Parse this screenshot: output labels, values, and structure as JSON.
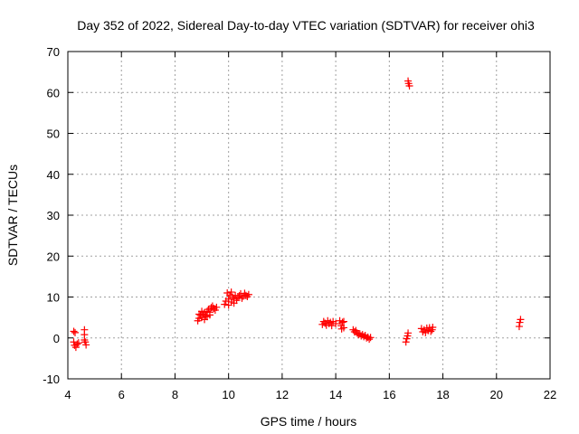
{
  "chart_data": {
    "type": "scatter",
    "title": "Day 352 of 2022, Sidereal Day-to-day VTEC variation (SDTVAR) for receiver ohi3",
    "xlabel": "GPS time / hours",
    "ylabel": "SDTVAR / TECUs",
    "xlim": [
      4,
      22
    ],
    "ylim": [
      -10,
      70
    ],
    "xticks": [
      4,
      6,
      8,
      10,
      12,
      14,
      16,
      18,
      20,
      22
    ],
    "yticks": [
      -10,
      0,
      10,
      20,
      30,
      40,
      50,
      60,
      70
    ],
    "grid": true,
    "marker": "plus",
    "color": "#ff0000",
    "series": [
      {
        "name": "SDTVAR",
        "points": [
          [
            4.22,
            1.6
          ],
          [
            4.27,
            1.3
          ],
          [
            4.22,
            -1.0
          ],
          [
            4.25,
            -1.8
          ],
          [
            4.3,
            -2.3
          ],
          [
            4.35,
            -1.5
          ],
          [
            4.4,
            -1.2
          ],
          [
            4.62,
            2.0
          ],
          [
            4.62,
            0.8
          ],
          [
            4.62,
            -0.5
          ],
          [
            4.65,
            -1.0
          ],
          [
            4.68,
            -1.7
          ],
          [
            8.85,
            4.2
          ],
          [
            8.9,
            4.8
          ],
          [
            8.95,
            5.5
          ],
          [
            9.0,
            5.0
          ],
          [
            9.05,
            5.8
          ],
          [
            9.1,
            6.2
          ],
          [
            9.15,
            5.5
          ],
          [
            9.2,
            6.5
          ],
          [
            9.25,
            7.0
          ],
          [
            9.3,
            6.3
          ],
          [
            9.35,
            7.4
          ],
          [
            9.4,
            7.8
          ],
          [
            8.9,
            5.8
          ],
          [
            9.0,
            6.5
          ],
          [
            9.1,
            4.5
          ],
          [
            9.2,
            5.2
          ],
          [
            9.3,
            5.6
          ],
          [
            9.45,
            7.2
          ],
          [
            9.5,
            6.8
          ],
          [
            9.55,
            7.5
          ],
          [
            9.85,
            8.2
          ],
          [
            9.9,
            9.0
          ],
          [
            9.95,
            11.0
          ],
          [
            10.0,
            9.5
          ],
          [
            10.05,
            10.5
          ],
          [
            10.1,
            8.8
          ],
          [
            10.15,
            10.0
          ],
          [
            10.2,
            9.6
          ],
          [
            10.25,
            10.4
          ],
          [
            10.3,
            9.2
          ],
          [
            10.35,
            9.9
          ],
          [
            10.4,
            10.3
          ],
          [
            10.45,
            10.8
          ],
          [
            10.5,
            9.7
          ],
          [
            10.55,
            10.2
          ],
          [
            10.6,
            10.9
          ],
          [
            10.65,
            10.4
          ],
          [
            10.7,
            10.1
          ],
          [
            10.75,
            10.6
          ],
          [
            10.0,
            8.0
          ],
          [
            10.1,
            11.2
          ],
          [
            10.2,
            8.5
          ],
          [
            13.5,
            3.3
          ],
          [
            13.55,
            4.0
          ],
          [
            13.6,
            3.6
          ],
          [
            13.65,
            3.1
          ],
          [
            13.7,
            4.2
          ],
          [
            13.75,
            3.5
          ],
          [
            13.8,
            3.8
          ],
          [
            13.85,
            3.0
          ],
          [
            13.9,
            4.0
          ],
          [
            14.0,
            3.5
          ],
          [
            14.15,
            4.2
          ],
          [
            14.2,
            3.0
          ],
          [
            14.22,
            2.2
          ],
          [
            14.25,
            3.8
          ],
          [
            14.3,
            4.0
          ],
          [
            14.3,
            2.5
          ],
          [
            14.65,
            2.0
          ],
          [
            14.7,
            1.5
          ],
          [
            14.75,
            1.8
          ],
          [
            14.8,
            1.2
          ],
          [
            14.85,
            0.8
          ],
          [
            14.9,
            1.0
          ],
          [
            14.95,
            0.5
          ],
          [
            15.0,
            0.8
          ],
          [
            15.05,
            0.3
          ],
          [
            15.1,
            0.6
          ],
          [
            15.15,
            0.0
          ],
          [
            15.2,
            0.2
          ],
          [
            15.25,
            -0.3
          ],
          [
            15.3,
            0.1
          ],
          [
            16.62,
            -1.0
          ],
          [
            16.65,
            -0.2
          ],
          [
            16.68,
            0.5
          ],
          [
            16.7,
            1.2
          ],
          [
            16.7,
            62.8
          ],
          [
            16.72,
            62.2
          ],
          [
            16.75,
            61.6
          ],
          [
            17.2,
            2.3
          ],
          [
            17.25,
            1.5
          ],
          [
            17.3,
            2.0
          ],
          [
            17.35,
            1.3
          ],
          [
            17.4,
            2.4
          ],
          [
            17.45,
            1.8
          ],
          [
            17.5,
            2.5
          ],
          [
            17.55,
            1.6
          ],
          [
            17.6,
            2.0
          ],
          [
            17.62,
            2.6
          ],
          [
            20.85,
            2.8
          ],
          [
            20.87,
            3.8
          ],
          [
            20.9,
            4.5
          ]
        ]
      }
    ]
  }
}
